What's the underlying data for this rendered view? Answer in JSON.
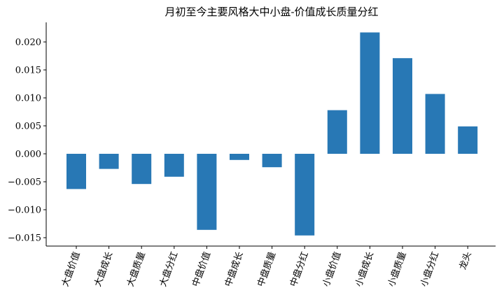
{
  "chart_data": {
    "type": "bar",
    "title": "月初至今主要风格大中小盘-价值成长质量分红",
    "xlabel": "",
    "ylabel": "",
    "categories": [
      "大盘价值",
      "大盘成长",
      "大盘质量",
      "大盘分红",
      "中盘价值",
      "中盘成长",
      "中盘质量",
      "中盘分红",
      "小盘价值",
      "小盘成长",
      "小盘质量",
      "小盘分红",
      "龙头"
    ],
    "values": [
      -0.0063,
      -0.0027,
      -0.0054,
      -0.0041,
      -0.0136,
      -0.0011,
      -0.0024,
      -0.0146,
      0.0078,
      0.0217,
      0.0171,
      0.0107,
      0.0049
    ],
    "ylim": [
      -0.0165,
      0.0235
    ],
    "yticks": [
      -0.015,
      -0.01,
      -0.005,
      0.0,
      0.005,
      0.01,
      0.015,
      0.02
    ],
    "ytick_labels": [
      "−0.015",
      "−0.010",
      "−0.005",
      "0.000",
      "0.005",
      "0.010",
      "0.015",
      "0.020"
    ],
    "bar_color": "#2878b5",
    "grid": false,
    "legend": "none"
  }
}
